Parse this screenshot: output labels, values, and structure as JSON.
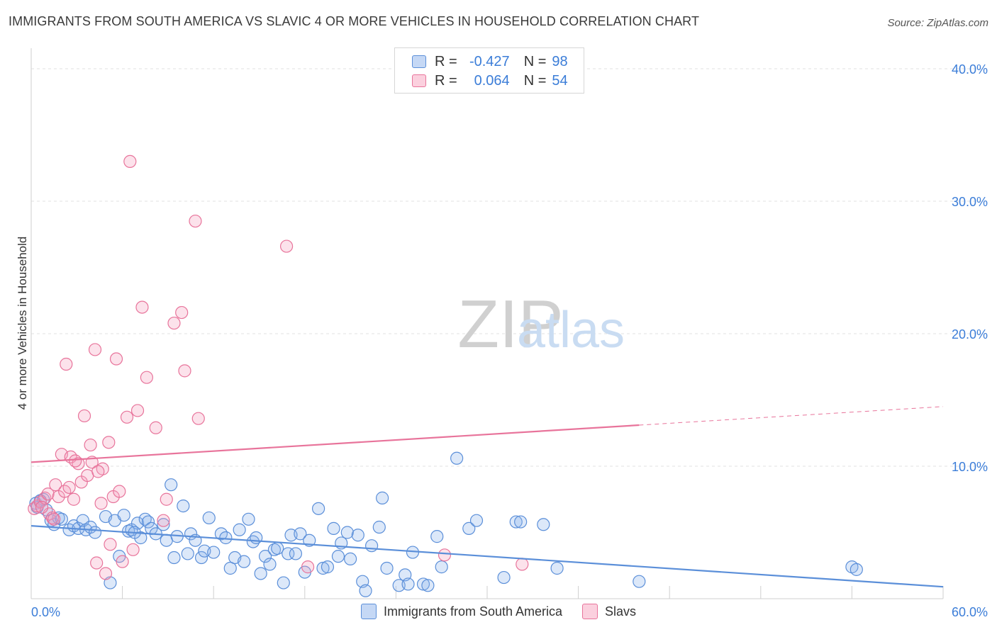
{
  "title": "IMMIGRANTS FROM SOUTH AMERICA VS SLAVIC 4 OR MORE VEHICLES IN HOUSEHOLD CORRELATION CHART",
  "source": "Source: ZipAtlas.com",
  "watermark": {
    "zip": "ZIP",
    "atlas": "atlas"
  },
  "legend_top": {
    "rows": [
      {
        "r_label": "R =",
        "r_value": "-0.427",
        "n_label": "N =",
        "n_value": "98",
        "color": "#5b8fd9"
      },
      {
        "r_label": "R =",
        "r_value": "0.064",
        "n_label": "N =",
        "n_value": "54",
        "color": "#e8749b"
      }
    ]
  },
  "legend_bottom": [
    {
      "label": "Immigrants from South America",
      "color": "#5b8fd9"
    },
    {
      "label": "Slavs",
      "color": "#e8749b"
    }
  ],
  "chart_data": {
    "type": "scatter",
    "title": "IMMIGRANTS FROM SOUTH AMERICA VS SLAVIC 4 OR MORE VEHICLES IN HOUSEHOLD CORRELATION CHART",
    "xlabel": "",
    "ylabel": "4 or more Vehicles in Household",
    "xlim": [
      0,
      60
    ],
    "ylim": [
      0,
      40
    ],
    "x_tick_labels": [
      "0.0%",
      "60.0%"
    ],
    "y_tick_labels": [
      "10.0%",
      "20.0%",
      "30.0%",
      "40.0%"
    ],
    "y_ticks": [
      10,
      20,
      30,
      40
    ],
    "grid": true,
    "legend_position": "top-center",
    "series": [
      {
        "name": "Immigrants from South America",
        "color": "#5b8fd9",
        "trend": {
          "x": [
            0,
            60
          ],
          "y": [
            5.5,
            0.9
          ],
          "dashed_from": null
        },
        "points": [
          [
            0.3,
            7.2
          ],
          [
            0.4,
            6.9
          ],
          [
            0.8,
            7.5
          ],
          [
            1.0,
            6.7
          ],
          [
            1.3,
            5.9
          ],
          [
            1.5,
            5.6
          ],
          [
            1.8,
            6.1
          ],
          [
            2.0,
            6.0
          ],
          [
            2.5,
            5.2
          ],
          [
            2.8,
            5.5
          ],
          [
            3.1,
            5.3
          ],
          [
            3.4,
            5.9
          ],
          [
            3.6,
            5.2
          ],
          [
            3.9,
            5.4
          ],
          [
            4.2,
            5.0
          ],
          [
            4.9,
            6.2
          ],
          [
            5.2,
            1.2
          ],
          [
            5.5,
            5.9
          ],
          [
            5.8,
            3.2
          ],
          [
            6.1,
            6.3
          ],
          [
            6.4,
            5.1
          ],
          [
            6.6,
            5.2
          ],
          [
            7.0,
            5.7
          ],
          [
            7.2,
            4.6
          ],
          [
            7.5,
            6.0
          ],
          [
            7.7,
            5.8
          ],
          [
            7.9,
            5.3
          ],
          [
            8.2,
            4.9
          ],
          [
            8.7,
            5.6
          ],
          [
            8.9,
            4.4
          ],
          [
            9.2,
            8.6
          ],
          [
            9.4,
            3.1
          ],
          [
            9.6,
            4.7
          ],
          [
            10.0,
            7.0
          ],
          [
            10.3,
            3.4
          ],
          [
            10.5,
            4.9
          ],
          [
            10.8,
            4.4
          ],
          [
            11.2,
            3.1
          ],
          [
            11.4,
            3.6
          ],
          [
            11.7,
            6.1
          ],
          [
            12.0,
            3.5
          ],
          [
            12.5,
            4.9
          ],
          [
            12.8,
            4.6
          ],
          [
            13.1,
            2.3
          ],
          [
            13.4,
            3.1
          ],
          [
            13.7,
            5.2
          ],
          [
            14.0,
            2.8
          ],
          [
            14.3,
            6.0
          ],
          [
            14.6,
            4.3
          ],
          [
            14.8,
            4.6
          ],
          [
            15.1,
            1.9
          ],
          [
            15.4,
            3.2
          ],
          [
            15.7,
            2.6
          ],
          [
            16.0,
            3.7
          ],
          [
            16.2,
            3.8
          ],
          [
            16.6,
            1.2
          ],
          [
            16.9,
            3.4
          ],
          [
            17.1,
            4.8
          ],
          [
            17.4,
            3.4
          ],
          [
            17.7,
            4.9
          ],
          [
            18.0,
            2.0
          ],
          [
            18.3,
            4.4
          ],
          [
            18.9,
            6.8
          ],
          [
            19.2,
            2.3
          ],
          [
            19.5,
            2.4
          ],
          [
            19.9,
            5.3
          ],
          [
            20.2,
            3.2
          ],
          [
            20.4,
            4.2
          ],
          [
            20.8,
            5.0
          ],
          [
            21.0,
            3.0
          ],
          [
            21.5,
            4.8
          ],
          [
            21.8,
            1.3
          ],
          [
            22.0,
            0.6
          ],
          [
            22.4,
            4.0
          ],
          [
            22.9,
            5.4
          ],
          [
            23.1,
            7.6
          ],
          [
            23.4,
            2.3
          ],
          [
            24.2,
            1.0
          ],
          [
            24.6,
            1.8
          ],
          [
            24.8,
            1.1
          ],
          [
            25.1,
            3.5
          ],
          [
            25.8,
            1.1
          ],
          [
            26.1,
            1.0
          ],
          [
            26.7,
            4.7
          ],
          [
            27.0,
            2.4
          ],
          [
            28.0,
            10.6
          ],
          [
            28.8,
            5.3
          ],
          [
            29.3,
            5.9
          ],
          [
            31.1,
            1.6
          ],
          [
            31.9,
            5.8
          ],
          [
            32.2,
            5.8
          ],
          [
            33.7,
            5.6
          ],
          [
            34.6,
            2.3
          ],
          [
            40.0,
            1.3
          ],
          [
            54.0,
            2.4
          ],
          [
            54.3,
            2.2
          ],
          [
            0.6,
            7.4
          ],
          [
            6.8,
            5.0
          ]
        ]
      },
      {
        "name": "Slavs",
        "color": "#e8749b",
        "trend": {
          "x": [
            0,
            60
          ],
          "y": [
            10.3,
            14.5
          ],
          "dashed_from": 40
        },
        "points": [
          [
            0.2,
            6.8
          ],
          [
            0.4,
            7.0
          ],
          [
            0.6,
            7.3
          ],
          [
            0.9,
            7.6
          ],
          [
            1.1,
            7.9
          ],
          [
            1.2,
            6.4
          ],
          [
            1.4,
            6.1
          ],
          [
            1.6,
            8.6
          ],
          [
            1.8,
            7.7
          ],
          [
            2.0,
            10.9
          ],
          [
            2.2,
            8.1
          ],
          [
            2.3,
            17.7
          ],
          [
            2.5,
            8.4
          ],
          [
            2.6,
            10.7
          ],
          [
            2.8,
            7.5
          ],
          [
            3.1,
            10.2
          ],
          [
            3.3,
            8.8
          ],
          [
            3.5,
            13.8
          ],
          [
            3.7,
            9.3
          ],
          [
            3.9,
            11.6
          ],
          [
            4.0,
            10.3
          ],
          [
            4.2,
            18.8
          ],
          [
            4.3,
            2.7
          ],
          [
            4.6,
            7.2
          ],
          [
            4.7,
            9.8
          ],
          [
            4.9,
            1.9
          ],
          [
            5.1,
            11.8
          ],
          [
            5.2,
            4.1
          ],
          [
            5.4,
            7.7
          ],
          [
            5.6,
            18.1
          ],
          [
            5.8,
            8.1
          ],
          [
            6.0,
            2.8
          ],
          [
            6.3,
            13.7
          ],
          [
            6.5,
            33.0
          ],
          [
            6.7,
            3.7
          ],
          [
            7.0,
            14.2
          ],
          [
            7.3,
            22.0
          ],
          [
            7.6,
            16.7
          ],
          [
            8.2,
            12.9
          ],
          [
            8.7,
            5.9
          ],
          [
            8.9,
            7.5
          ],
          [
            9.4,
            20.8
          ],
          [
            9.9,
            21.6
          ],
          [
            10.1,
            17.2
          ],
          [
            10.8,
            28.5
          ],
          [
            11.0,
            13.6
          ],
          [
            16.8,
            26.6
          ],
          [
            18.2,
            2.4
          ],
          [
            27.2,
            3.3
          ],
          [
            32.3,
            2.6
          ],
          [
            0.7,
            6.9
          ],
          [
            1.5,
            6.0
          ],
          [
            2.9,
            10.4
          ],
          [
            4.4,
            9.6
          ]
        ]
      }
    ]
  }
}
